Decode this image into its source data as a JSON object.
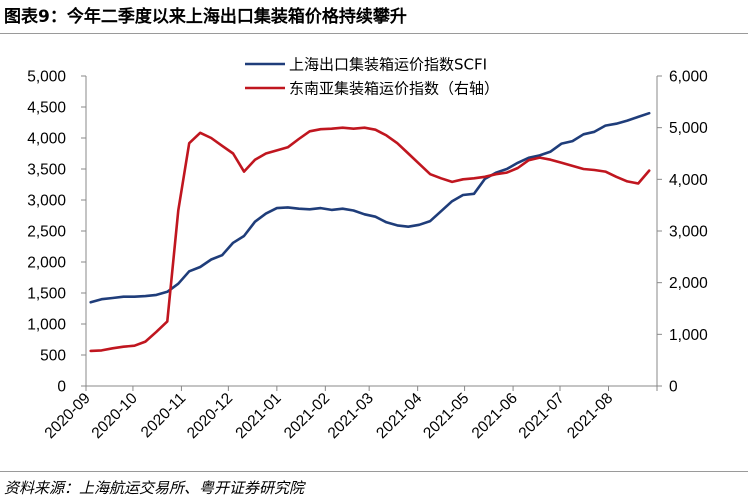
{
  "header": {
    "title": "图表9：今年二季度以来上海出口集装箱价格持续攀升"
  },
  "footer": {
    "source": "资料来源：上海航运交易所、粤开证券研究院"
  },
  "chart_data": {
    "type": "line",
    "grid": false,
    "legend_position": "top-center",
    "x_tick_labels": [
      "2020-09",
      "2020-10",
      "2020-11",
      "2020-12",
      "2021-01",
      "2021-02",
      "2021-03",
      "2021-04",
      "2021-05",
      "2021-06",
      "2021-07",
      "2021-08"
    ],
    "left_axis": {
      "ylim": [
        0,
        5000
      ],
      "tick_labels": [
        "0",
        "500",
        "1,000",
        "1,500",
        "2,000",
        "2,500",
        "3,000",
        "3,500",
        "4,000",
        "4,500",
        "5,000"
      ]
    },
    "right_axis": {
      "ylim": [
        0,
        6000
      ],
      "tick_labels": [
        "0",
        "1,000",
        "2,000",
        "3,000",
        "4,000",
        "5,000",
        "6,000"
      ]
    },
    "series": [
      {
        "name": "上海出口集装箱运价指数SCFI",
        "axis": "left",
        "color": "#1f3d7a",
        "x": [
          "2020-09-04",
          "2020-09-11",
          "2020-09-18",
          "2020-09-25",
          "2020-10-02",
          "2020-10-09",
          "2020-10-16",
          "2020-10-23",
          "2020-10-30",
          "2020-11-06",
          "2020-11-13",
          "2020-11-20",
          "2020-11-27",
          "2020-12-04",
          "2020-12-11",
          "2020-12-18",
          "2020-12-25",
          "2021-01-01",
          "2021-01-08",
          "2021-01-15",
          "2021-01-22",
          "2021-01-29",
          "2021-02-05",
          "2021-02-12",
          "2021-02-19",
          "2021-02-26",
          "2021-03-05",
          "2021-03-12",
          "2021-03-19",
          "2021-03-26",
          "2021-04-02",
          "2021-04-09",
          "2021-04-16",
          "2021-04-23",
          "2021-04-30",
          "2021-05-07",
          "2021-05-14",
          "2021-05-21",
          "2021-05-28",
          "2021-06-04",
          "2021-06-11",
          "2021-06-18",
          "2021-06-25",
          "2021-07-02",
          "2021-07-09",
          "2021-07-16",
          "2021-07-23",
          "2021-07-30",
          "2021-08-06",
          "2021-08-13",
          "2021-08-20",
          "2021-08-27"
        ],
        "values": [
          1350,
          1400,
          1420,
          1440,
          1440,
          1450,
          1470,
          1520,
          1650,
          1850,
          1920,
          2040,
          2110,
          2310,
          2420,
          2650,
          2780,
          2870,
          2880,
          2860,
          2850,
          2870,
          2840,
          2860,
          2830,
          2770,
          2730,
          2640,
          2590,
          2570,
          2600,
          2660,
          2820,
          2980,
          3080,
          3100,
          3340,
          3440,
          3500,
          3600,
          3680,
          3720,
          3780,
          3910,
          3950,
          4060,
          4100,
          4200,
          4230,
          4280,
          4340,
          4400
        ]
      },
      {
        "name": "东南亚集装箱运价指数（右轴）",
        "axis": "right",
        "color": "#c0161f",
        "x": [
          "2020-09-04",
          "2020-09-11",
          "2020-09-18",
          "2020-09-25",
          "2020-10-02",
          "2020-10-09",
          "2020-10-16",
          "2020-10-23",
          "2020-10-30",
          "2020-11-06",
          "2020-11-13",
          "2020-11-20",
          "2020-11-27",
          "2020-12-04",
          "2020-12-11",
          "2020-12-18",
          "2020-12-25",
          "2021-01-01",
          "2021-01-08",
          "2021-01-15",
          "2021-01-22",
          "2021-01-29",
          "2021-02-05",
          "2021-02-12",
          "2021-02-19",
          "2021-02-26",
          "2021-03-05",
          "2021-03-12",
          "2021-03-19",
          "2021-03-26",
          "2021-04-02",
          "2021-04-09",
          "2021-04-16",
          "2021-04-23",
          "2021-04-30",
          "2021-05-07",
          "2021-05-14",
          "2021-05-21",
          "2021-05-28",
          "2021-06-04",
          "2021-06-11",
          "2021-06-18",
          "2021-06-25",
          "2021-07-02",
          "2021-07-09",
          "2021-07-16",
          "2021-07-23",
          "2021-07-30",
          "2021-08-06",
          "2021-08-13",
          "2021-08-20",
          "2021-08-27"
        ],
        "values": [
          680,
          690,
          730,
          760,
          780,
          860,
          1050,
          1250,
          3400,
          4700,
          4900,
          4800,
          4650,
          4500,
          4150,
          4380,
          4500,
          4560,
          4620,
          4780,
          4930,
          4970,
          4980,
          5000,
          4980,
          5000,
          4960,
          4850,
          4700,
          4500,
          4300,
          4100,
          4020,
          3950,
          4000,
          4020,
          4050,
          4100,
          4130,
          4220,
          4370,
          4420,
          4380,
          4320,
          4260,
          4200,
          4180,
          4150,
          4050,
          3960,
          3920,
          4170
        ]
      }
    ]
  }
}
